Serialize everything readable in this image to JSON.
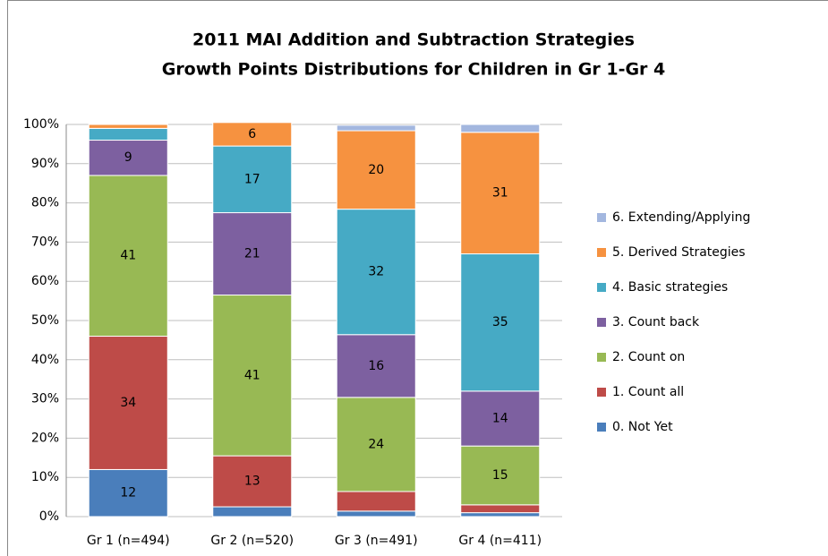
{
  "chart_data": {
    "type": "stacked_bar",
    "title": [
      "2011 MAI Addition and Subtraction Strategies",
      "Growth Points Distributions for Children in Gr 1-Gr 4"
    ],
    "categories": [
      "Gr 1 (n=494)",
      "Gr 2 (n=520)",
      "Gr 3 (n=491)",
      "Gr 4 (n=411)"
    ],
    "series": [
      {
        "name": "0. Not Yet",
        "color": "#4a7ebb",
        "values": [
          12,
          2.5,
          1.4,
          1
        ],
        "value_labels": [
          "12",
          null,
          null,
          null
        ]
      },
      {
        "name": "1. Count all",
        "color": "#be4b48",
        "values": [
          34,
          13,
          5,
          2
        ],
        "value_labels": [
          "34",
          "13",
          null,
          null
        ]
      },
      {
        "name": "2. Count on",
        "color": "#98b954",
        "values": [
          41,
          41,
          24,
          15
        ],
        "value_labels": [
          "41",
          "41",
          "24",
          "15"
        ]
      },
      {
        "name": "3. Count back",
        "color": "#7d60a0",
        "values": [
          9,
          21,
          16,
          14
        ],
        "value_labels": [
          "9",
          "21",
          "16",
          "14"
        ]
      },
      {
        "name": "4. Basic strategies",
        "color": "#46aac5",
        "values": [
          3,
          17,
          32,
          35
        ],
        "value_labels": [
          null,
          "17",
          "32",
          "35"
        ]
      },
      {
        "name": "5. Derived Strategies",
        "color": "#f69240",
        "values": [
          1,
          6,
          20,
          31
        ],
        "value_labels": [
          null,
          "6",
          "20",
          "31"
        ]
      },
      {
        "name": "6. Extending/Applying",
        "color": "#a3b7df",
        "values": [
          0,
          0,
          1.4,
          2
        ],
        "value_labels": [
          null,
          null,
          null,
          null
        ]
      }
    ],
    "ylim": [
      0,
      100
    ],
    "yticks": [
      {
        "value": 0,
        "label": "0%"
      },
      {
        "value": 10,
        "label": "10%"
      },
      {
        "value": 20,
        "label": "20%"
      },
      {
        "value": 30,
        "label": "30%"
      },
      {
        "value": 40,
        "label": "40%"
      },
      {
        "value": 50,
        "label": "50%"
      },
      {
        "value": 60,
        "label": "60%"
      },
      {
        "value": 70,
        "label": "70%"
      },
      {
        "value": 80,
        "label": "80%"
      },
      {
        "value": 90,
        "label": "90%"
      },
      {
        "value": 100,
        "label": "100%"
      }
    ],
    "grid": true,
    "legend": "right"
  }
}
